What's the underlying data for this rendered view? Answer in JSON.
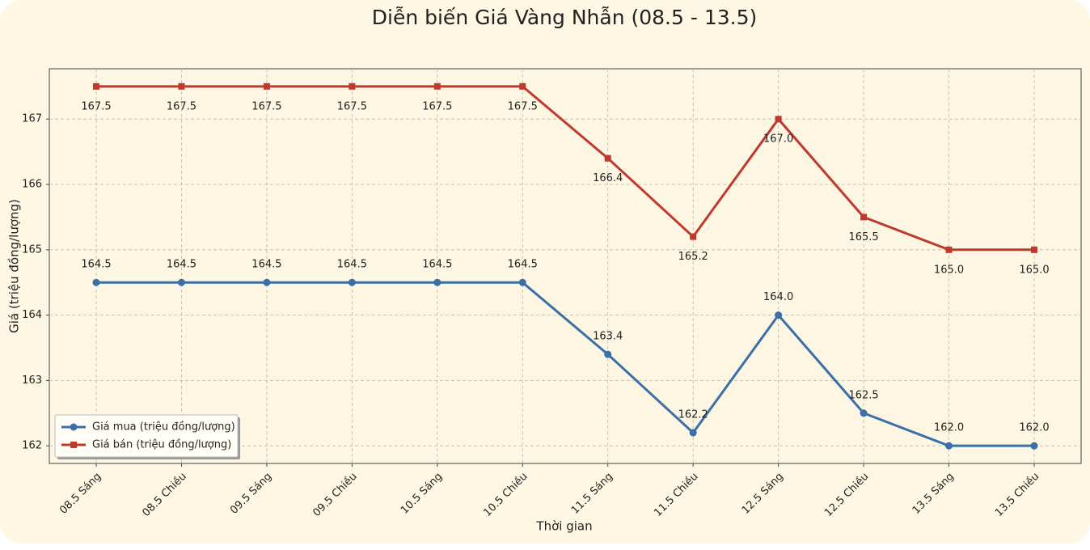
{
  "chart_data": {
    "type": "line",
    "title": "Diễn biến Giá Vàng Nhẫn (08.5 - 13.5)",
    "x_label": "Thời gian",
    "y_label": "Giá (triệu đồng/lượng)",
    "categories": [
      "08.5 Sáng",
      "08.5 Chiều",
      "09.5 Sáng",
      "09.5 Chiều",
      "10.5 Sáng",
      "10.5 Chiều",
      "11.5 Sáng",
      "11.5 Chiều",
      "12.5 Sáng",
      "12.5 Chiều",
      "13.5 Sáng",
      "13.5 Chiều"
    ],
    "series": [
      {
        "name": "Giá mua (triệu đồng/lượng)",
        "color": "#3b6fa8",
        "marker": "circle",
        "values": [
          164.5,
          164.5,
          164.5,
          164.5,
          164.5,
          164.5,
          163.4,
          162.2,
          164.0,
          162.5,
          162.0,
          162.0
        ],
        "value_labels": [
          "164.5",
          "164.5",
          "164.5",
          "164.5",
          "164.5",
          "164.5",
          "163.4",
          "162.2",
          "164.0",
          "162.5",
          "162.0",
          "162.0"
        ]
      },
      {
        "name": "Giá bán (triệu đồng/lượng)",
        "color": "#c0392f",
        "marker": "square",
        "values": [
          167.5,
          167.5,
          167.5,
          167.5,
          167.5,
          167.5,
          166.4,
          165.2,
          167.0,
          165.5,
          165.0,
          165.0
        ],
        "value_labels": [
          "167.5",
          "167.5",
          "167.5",
          "167.5",
          "167.5",
          "167.5",
          "166.4",
          "165.2",
          "167.0",
          "165.5",
          "165.0",
          "165.0"
        ]
      }
    ],
    "ylim": [
      161.73,
      167.77
    ],
    "yticks": [
      162,
      163,
      164,
      165,
      166,
      167
    ],
    "grid": true,
    "legend": "lower left"
  }
}
